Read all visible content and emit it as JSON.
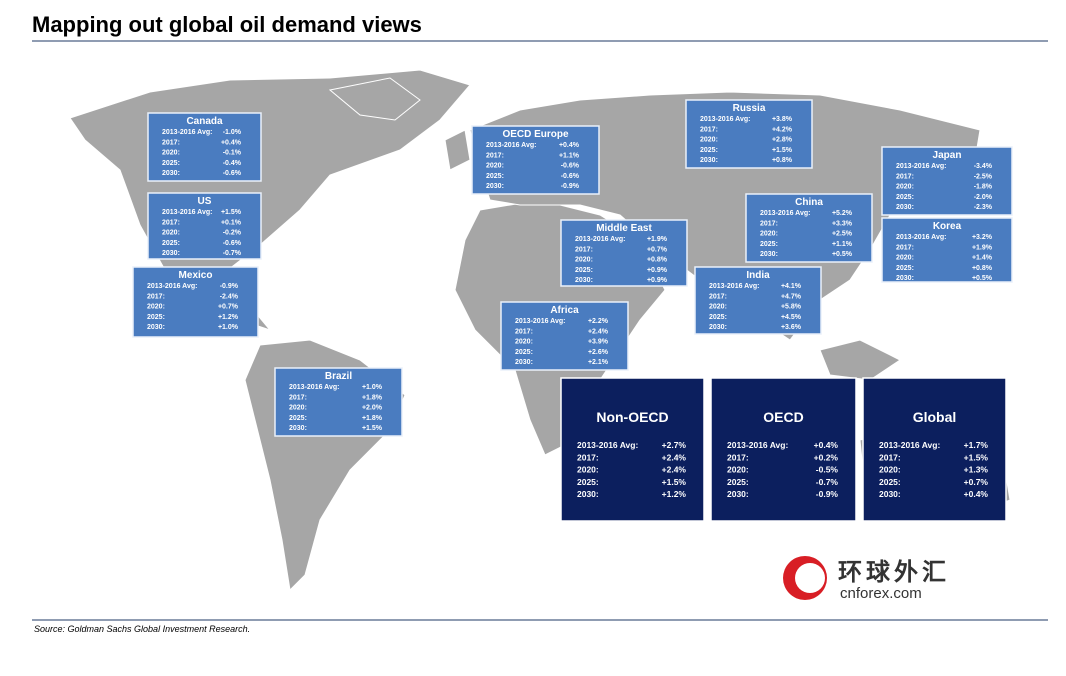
{
  "title": "Mapping out global oil demand views",
  "row_labels": [
    "2013-2016 Avg:",
    "2017:",
    "2020:",
    "2025:",
    "2030:"
  ],
  "regions": [
    {
      "name": "Canada",
      "values": [
        "-1.0%",
        "+0.4%",
        "-0.1%",
        "-0.4%",
        "-0.6%"
      ]
    },
    {
      "name": "US",
      "values": [
        "+1.5%",
        "+0.1%",
        "-0.2%",
        "-0.6%",
        "-0.7%"
      ]
    },
    {
      "name": "Mexico",
      "values": [
        "-0.9%",
        "-2.4%",
        "+0.7%",
        "+1.2%",
        "+1.0%"
      ]
    },
    {
      "name": "Brazil",
      "values": [
        "+1.0%",
        "+1.8%",
        "+2.0%",
        "+1.8%",
        "+1.5%"
      ]
    },
    {
      "name": "OECD Europe",
      "values": [
        "+0.4%",
        "+1.1%",
        "-0.6%",
        "-0.6%",
        "-0.9%"
      ]
    },
    {
      "name": "Russia",
      "values": [
        "+3.8%",
        "+4.2%",
        "+2.8%",
        "+1.5%",
        "+0.8%"
      ]
    },
    {
      "name": "Japan",
      "values": [
        "-3.4%",
        "-2.5%",
        "-1.8%",
        "-2.0%",
        "-2.3%"
      ]
    },
    {
      "name": "China",
      "values": [
        "+5.2%",
        "+3.3%",
        "+2.5%",
        "+1.1%",
        "+0.5%"
      ]
    },
    {
      "name": "Korea",
      "values": [
        "+3.2%",
        "+1.9%",
        "+1.4%",
        "+0.8%",
        "+0.5%"
      ]
    },
    {
      "name": "Middle East",
      "values": [
        "+1.9%",
        "+0.7%",
        "+0.8%",
        "+0.9%",
        "+0.9%"
      ]
    },
    {
      "name": "India",
      "values": [
        "+4.1%",
        "+4.7%",
        "+5.8%",
        "+4.5%",
        "+3.6%"
      ]
    },
    {
      "name": "Africa",
      "values": [
        "+2.2%",
        "+2.4%",
        "+3.9%",
        "+2.6%",
        "+2.1%"
      ]
    },
    {
      "name": "Non-OECD",
      "values": [
        "+2.7%",
        "+2.4%",
        "+2.4%",
        "+1.5%",
        "+1.2%"
      ]
    },
    {
      "name": "OECD",
      "values": [
        "+0.4%",
        "+0.2%",
        "-0.5%",
        "-0.7%",
        "-0.9%"
      ]
    },
    {
      "name": "Global",
      "values": [
        "+1.7%",
        "+1.5%",
        "+1.3%",
        "+0.7%",
        "+0.4%"
      ]
    }
  ],
  "watermark": {
    "chinese": "环球外汇",
    "site": "cnforex.com"
  },
  "source": "Source: Goldman Sachs Global Investment Research."
}
